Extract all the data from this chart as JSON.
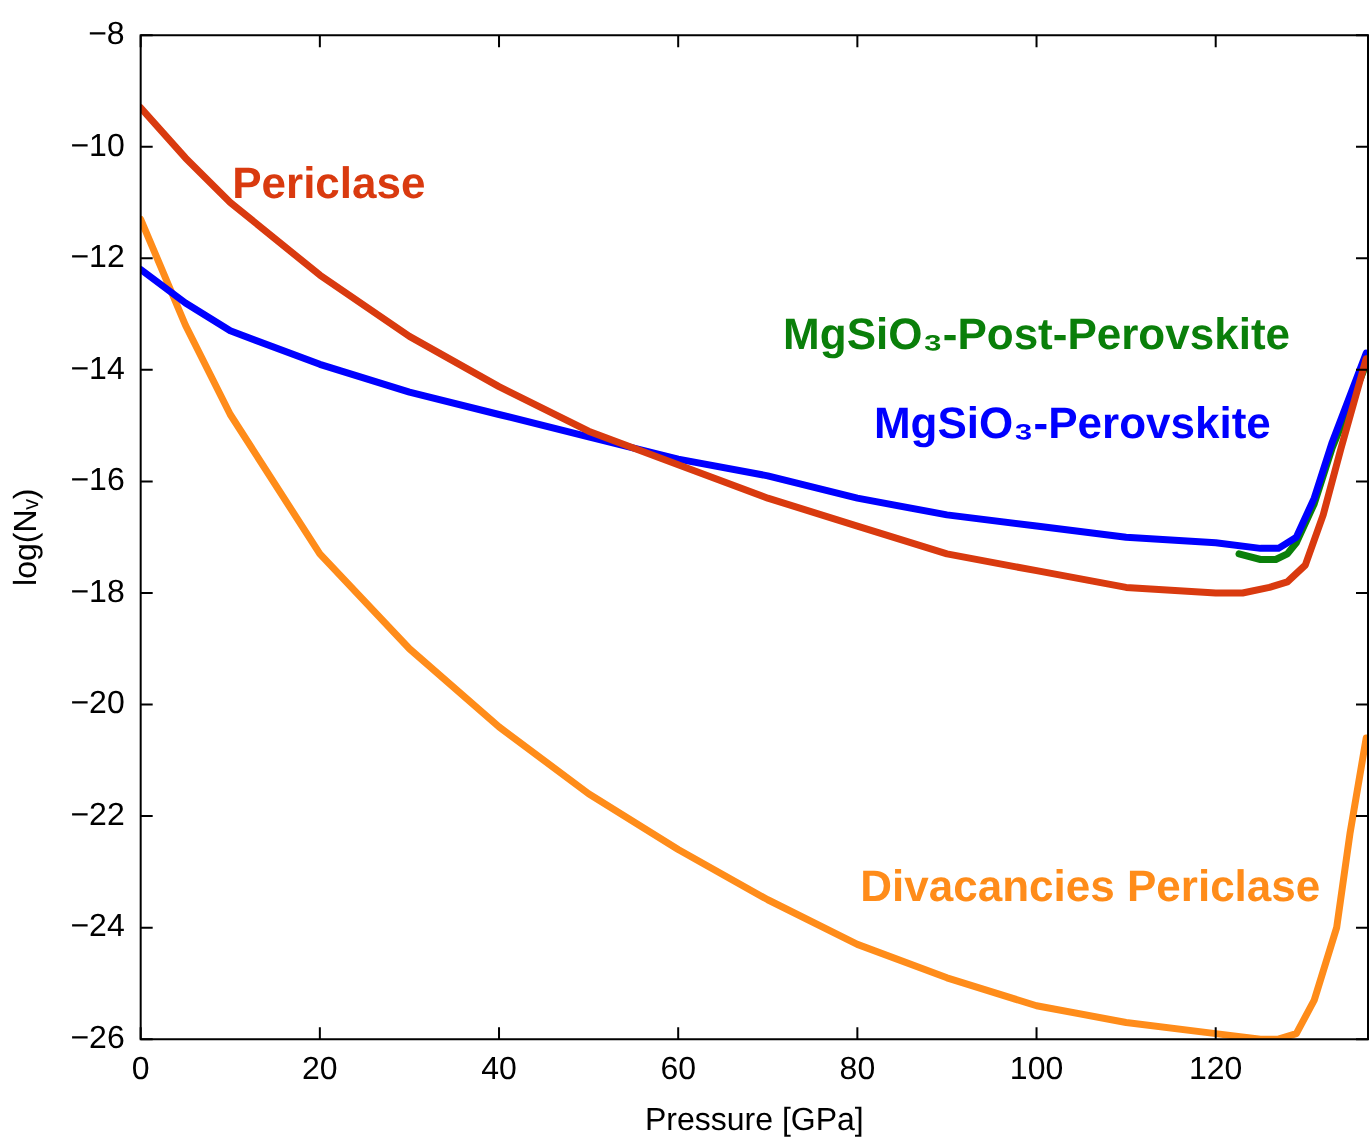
{
  "chart_data": {
    "type": "line",
    "xlabel": "Pressure [GPa]",
    "ylabel": "log(Nᵥ)",
    "xlim": [
      0,
      137
    ],
    "xticks": [
      0,
      20,
      40,
      60,
      80,
      100,
      120
    ],
    "ylim": [
      -26,
      -8
    ],
    "yticks": [
      -26,
      -24,
      -22,
      -20,
      -18,
      -16,
      -14,
      -12,
      -10,
      -8
    ],
    "grid": false,
    "legend": false,
    "marker": "none",
    "line_style": "solid",
    "series": [
      {
        "name": "Periclase",
        "color": "#d93a0f",
        "x": [
          0,
          5,
          10,
          20,
          30,
          40,
          50,
          60,
          70,
          80,
          90,
          100,
          110,
          120,
          123,
          126,
          128,
          130,
          132,
          134,
          136.8
        ],
        "values": [
          -9.3,
          -10.2,
          -11.0,
          -12.3,
          -13.4,
          -14.3,
          -15.1,
          -15.7,
          -16.3,
          -16.8,
          -17.3,
          -17.6,
          -17.9,
          -18.0,
          -18.0,
          -17.9,
          -17.8,
          -17.5,
          -16.6,
          -15.4,
          -13.8
        ]
      },
      {
        "name": "MgSiO₃-Perovskite",
        "color": "#0000ff",
        "x": [
          0,
          5,
          10,
          20,
          30,
          40,
          50,
          60,
          70,
          80,
          90,
          100,
          110,
          120,
          125,
          127,
          129,
          131,
          133,
          136.8
        ],
        "values": [
          -12.2,
          -12.8,
          -13.3,
          -13.9,
          -14.4,
          -14.8,
          -15.2,
          -15.6,
          -15.9,
          -16.3,
          -16.6,
          -16.8,
          -17.0,
          -17.1,
          -17.2,
          -17.2,
          -17.0,
          -16.3,
          -15.3,
          -13.7
        ]
      },
      {
        "name": "MgSiO₃-Post-Perovskite",
        "color": "#0a7f0a",
        "x": [
          122.6,
          125,
          126.7,
          128,
          129,
          131,
          133,
          136.8
        ],
        "values": [
          -17.3,
          -17.4,
          -17.4,
          -17.3,
          -17.1,
          -16.4,
          -15.4,
          -13.9
        ]
      },
      {
        "name": "Divacancies Periclase",
        "color": "#ff8c1a",
        "x": [
          0,
          5,
          10,
          20,
          30,
          40,
          50,
          60,
          70,
          80,
          90,
          100,
          110,
          120,
          125,
          127,
          129,
          131,
          133.5,
          135,
          136.8
        ],
        "values": [
          -11.3,
          -13.2,
          -14.8,
          -17.3,
          -19.0,
          -20.4,
          -21.6,
          -22.6,
          -23.5,
          -24.3,
          -24.9,
          -25.4,
          -25.7,
          -25.9,
          -26.0,
          -26.0,
          -25.9,
          -25.3,
          -24.0,
          -22.3,
          -20.6
        ]
      }
    ]
  }
}
